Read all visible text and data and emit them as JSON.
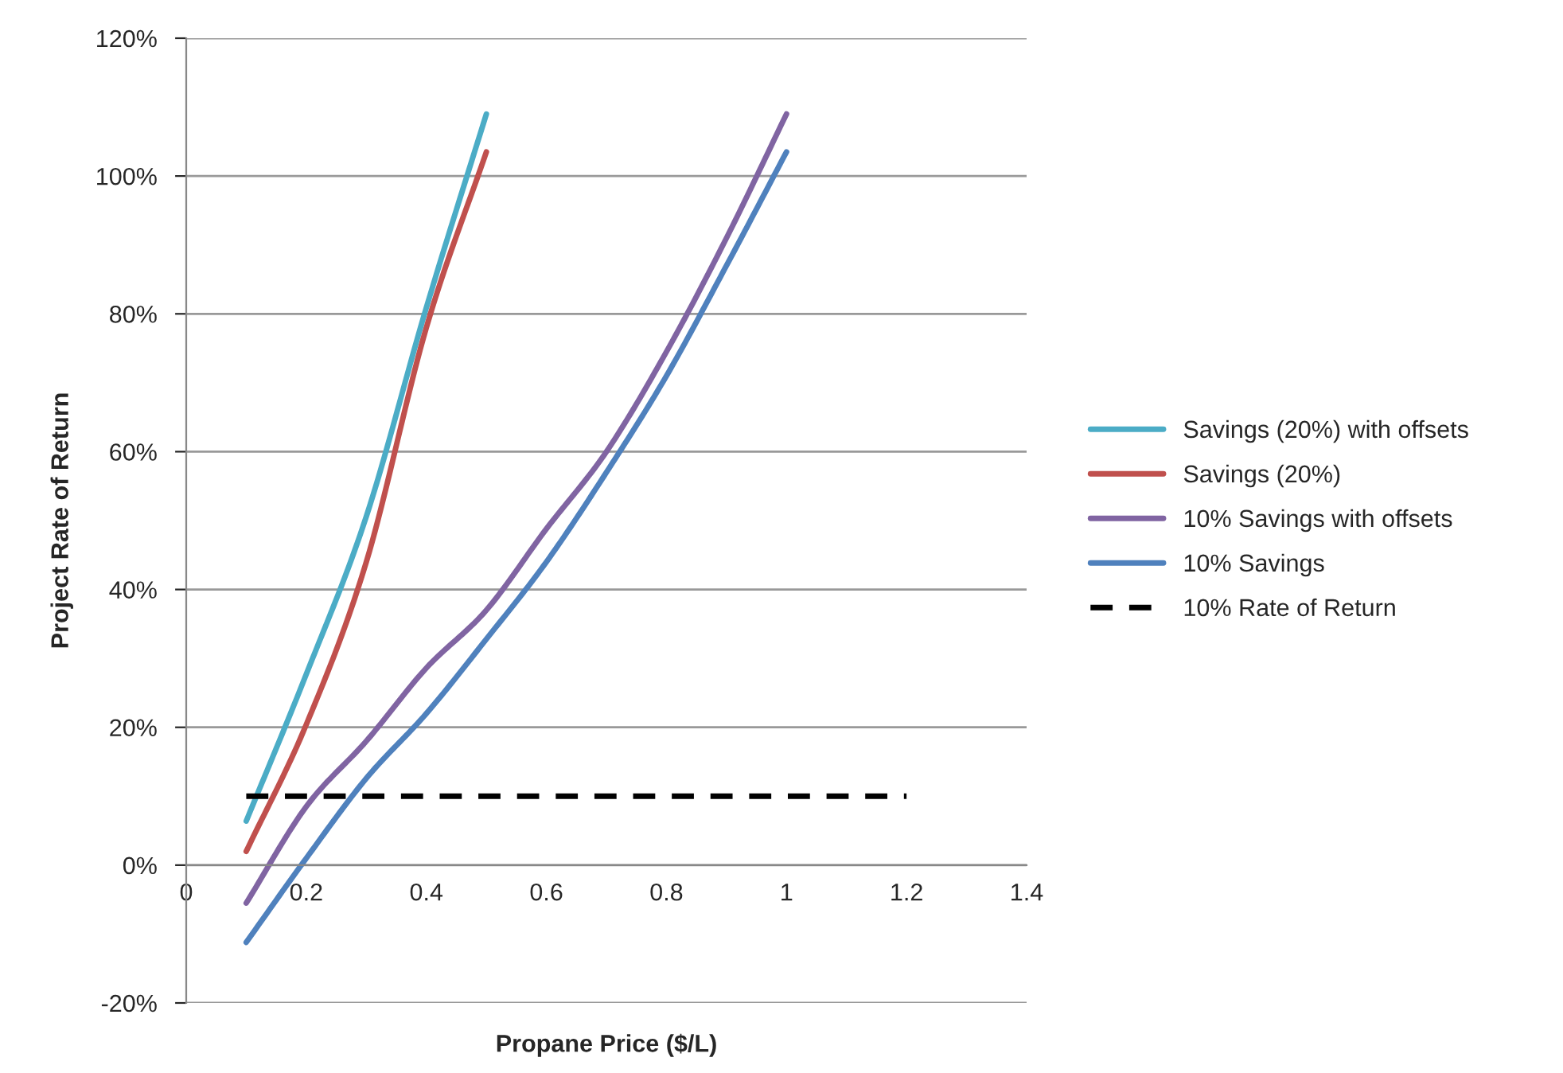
{
  "chart_data": {
    "type": "line",
    "xlabel": "Propane Price ($/L)",
    "ylabel": "Project Rate of Return",
    "xlim": [
      0,
      1.4
    ],
    "xticks": [
      0,
      0.2,
      0.4,
      0.6,
      0.8,
      1,
      1.2,
      1.4
    ],
    "ylim": [
      -20,
      120
    ],
    "yticks": [
      {
        "value": -20,
        "label": "-20%"
      },
      {
        "value": 0,
        "label": "0%"
      },
      {
        "value": 20,
        "label": "20%"
      },
      {
        "value": 40,
        "label": "40%"
      },
      {
        "value": 60,
        "label": "60%"
      },
      {
        "value": 80,
        "label": "80%"
      },
      {
        "value": 100,
        "label": "100%"
      },
      {
        "value": 120,
        "label": "120%"
      }
    ],
    "grid": "y",
    "legend": "right",
    "marker": "none",
    "series": [
      {
        "name": "Savings (20%) with offsets",
        "color": "#4bacc6",
        "x": [
          0.1,
          0.2,
          0.3,
          0.4,
          0.5
        ],
        "values": [
          6.4,
          27.7,
          50.6,
          80.9,
          109
        ]
      },
      {
        "name": "Savings (20%)",
        "color": "#c0504d",
        "x": [
          0.1,
          0.2,
          0.3,
          0.4,
          0.5
        ],
        "values": [
          2,
          20.4,
          44,
          78,
          103.5
        ]
      },
      {
        "name": "10% Savings with offsets",
        "color": "#8064a2",
        "x": [
          0.1,
          0.2,
          0.3,
          0.4,
          0.5,
          0.6,
          0.7,
          0.8,
          0.9,
          1.0
        ],
        "values": [
          -5.5,
          8.5,
          18,
          28.6,
          37,
          48.8,
          60,
          74.5,
          91,
          109
        ]
      },
      {
        "name": "10% Savings",
        "color": "#4f81bd",
        "x": [
          0.1,
          0.2,
          0.3,
          0.4,
          0.5,
          0.6,
          0.7,
          0.8,
          0.9,
          1.0
        ],
        "values": [
          -11.2,
          1,
          12.6,
          22,
          32.8,
          44,
          57,
          71,
          87,
          103.5
        ]
      },
      {
        "name": "10% Rate of Return",
        "color": "#000000",
        "line_style": "dashed",
        "x": [
          0.1,
          1.2
        ],
        "values": [
          10,
          10
        ]
      }
    ]
  }
}
